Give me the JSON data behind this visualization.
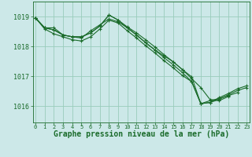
{
  "background_color": "#cce8e8",
  "grid_color": "#99ccbb",
  "line_color": "#1a6b2a",
  "xlabel": "Graphe pression niveau de la mer (hPa)",
  "xlabel_fontsize": 7,
  "ytick_fontsize": 6,
  "xtick_fontsize": 5,
  "yticks": [
    1016,
    1017,
    1018,
    1019
  ],
  "xticks": [
    0,
    1,
    2,
    3,
    4,
    5,
    6,
    7,
    8,
    9,
    10,
    11,
    12,
    13,
    14,
    15,
    16,
    17,
    18,
    19,
    20,
    21,
    22,
    23
  ],
  "xlim": [
    -0.3,
    23.3
  ],
  "ylim": [
    1015.45,
    1019.5
  ],
  "series": [
    [
      1018.95,
      1018.62,
      1018.62,
      1018.38,
      1018.32,
      1018.28,
      1018.52,
      1018.72,
      1018.92,
      1018.82,
      1018.62,
      1018.38,
      1018.12,
      1017.88,
      1017.62,
      1017.38,
      1017.12,
      1016.82,
      1016.08,
      1016.18,
      1016.25,
      1016.35,
      1016.45,
      null
    ],
    [
      1018.95,
      1018.62,
      1018.55,
      1018.38,
      1018.32,
      1018.32,
      1018.45,
      1018.68,
      1019.05,
      1018.88,
      1018.62,
      1018.38,
      1018.12,
      1017.88,
      1017.68,
      1017.48,
      1017.22,
      1016.92,
      1016.62,
      1016.22,
      1016.18,
      1016.32,
      null,
      null
    ],
    [
      1018.95,
      1018.62,
      1018.55,
      1018.38,
      1018.32,
      1018.32,
      1018.45,
      1018.68,
      1019.05,
      1018.88,
      1018.65,
      1018.45,
      1018.22,
      1017.98,
      1017.72,
      1017.48,
      1017.22,
      1016.98,
      1016.08,
      1016.12,
      1016.28,
      1016.42,
      1016.58,
      1016.68
    ],
    [
      1018.95,
      1018.58,
      1018.42,
      1018.32,
      1018.22,
      1018.18,
      1018.32,
      1018.58,
      1018.88,
      1018.78,
      1018.52,
      1018.28,
      1018.02,
      1017.78,
      1017.52,
      1017.28,
      1017.02,
      1016.82,
      1016.08,
      1016.12,
      1016.22,
      1016.38,
      1016.52,
      1016.62
    ]
  ]
}
